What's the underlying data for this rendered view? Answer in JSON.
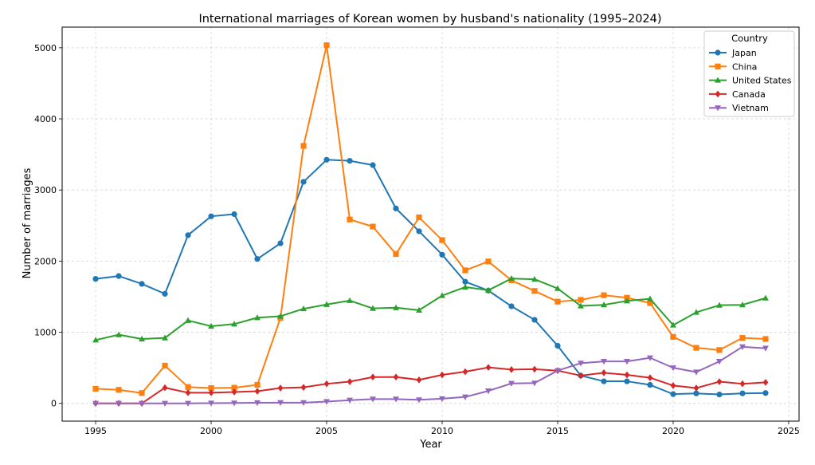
{
  "chart_data": {
    "type": "line",
    "title": "International marriages of Korean women by husband's nationality (1995–2024)",
    "xlabel": "Year",
    "ylabel": "Number of marriages",
    "xlim": [
      1993.55,
      2025.45
    ],
    "ylim": [
      -250,
      5290
    ],
    "xticks": [
      1995,
      2000,
      2005,
      2010,
      2015,
      2020,
      2025
    ],
    "yticks": [
      0,
      1000,
      2000,
      3000,
      4000,
      5000
    ],
    "grid": true,
    "legend": {
      "title": "Country",
      "placement": "top-right"
    },
    "x": [
      1995,
      1996,
      1997,
      1998,
      1999,
      2000,
      2001,
      2002,
      2003,
      2004,
      2005,
      2006,
      2007,
      2008,
      2009,
      2010,
      2011,
      2012,
      2013,
      2014,
      2015,
      2016,
      2017,
      2018,
      2019,
      2020,
      2021,
      2022,
      2023,
      2024
    ],
    "series": [
      {
        "name": "Japan",
        "color": "#1f77b4",
        "marker": "circle",
        "values": [
          1750,
          1790,
          1680,
          1540,
          2365,
          2630,
          2660,
          2030,
          2250,
          3115,
          3425,
          3410,
          3350,
          2740,
          2420,
          2090,
          1710,
          1585,
          1365,
          1175,
          810,
          390,
          310,
          310,
          260,
          130,
          140,
          125,
          140,
          145
        ]
      },
      {
        "name": "China",
        "color": "#ff7f0e",
        "marker": "square",
        "values": [
          205,
          190,
          145,
          530,
          230,
          215,
          220,
          260,
          1200,
          3620,
          5035,
          2585,
          2485,
          2100,
          2615,
          2295,
          1870,
          1995,
          1730,
          1580,
          1430,
          1455,
          1520,
          1485,
          1410,
          935,
          780,
          750,
          920,
          905
        ]
      },
      {
        "name": "United States",
        "color": "#2ca02c",
        "marker": "triangle-up",
        "values": [
          890,
          965,
          905,
          920,
          1165,
          1085,
          1115,
          1205,
          1225,
          1330,
          1390,
          1445,
          1335,
          1345,
          1310,
          1515,
          1635,
          1590,
          1755,
          1745,
          1615,
          1370,
          1385,
          1440,
          1470,
          1100,
          1280,
          1380,
          1385,
          1480
        ]
      },
      {
        "name": "Canada",
        "color": "#d62728",
        "marker": "diamond",
        "values": [
          0,
          0,
          0,
          220,
          150,
          150,
          160,
          170,
          215,
          225,
          275,
          305,
          370,
          370,
          330,
          400,
          445,
          505,
          475,
          480,
          460,
          390,
          430,
          400,
          360,
          250,
          215,
          305,
          275,
          295
        ]
      },
      {
        "name": "Vietnam",
        "color": "#9467bd",
        "marker": "triangle-down",
        "values": [
          0,
          0,
          0,
          0,
          0,
          3,
          5,
          8,
          10,
          10,
          25,
          45,
          60,
          60,
          50,
          65,
          90,
          175,
          280,
          285,
          460,
          565,
          590,
          590,
          640,
          500,
          440,
          590,
          795,
          775
        ]
      }
    ]
  }
}
